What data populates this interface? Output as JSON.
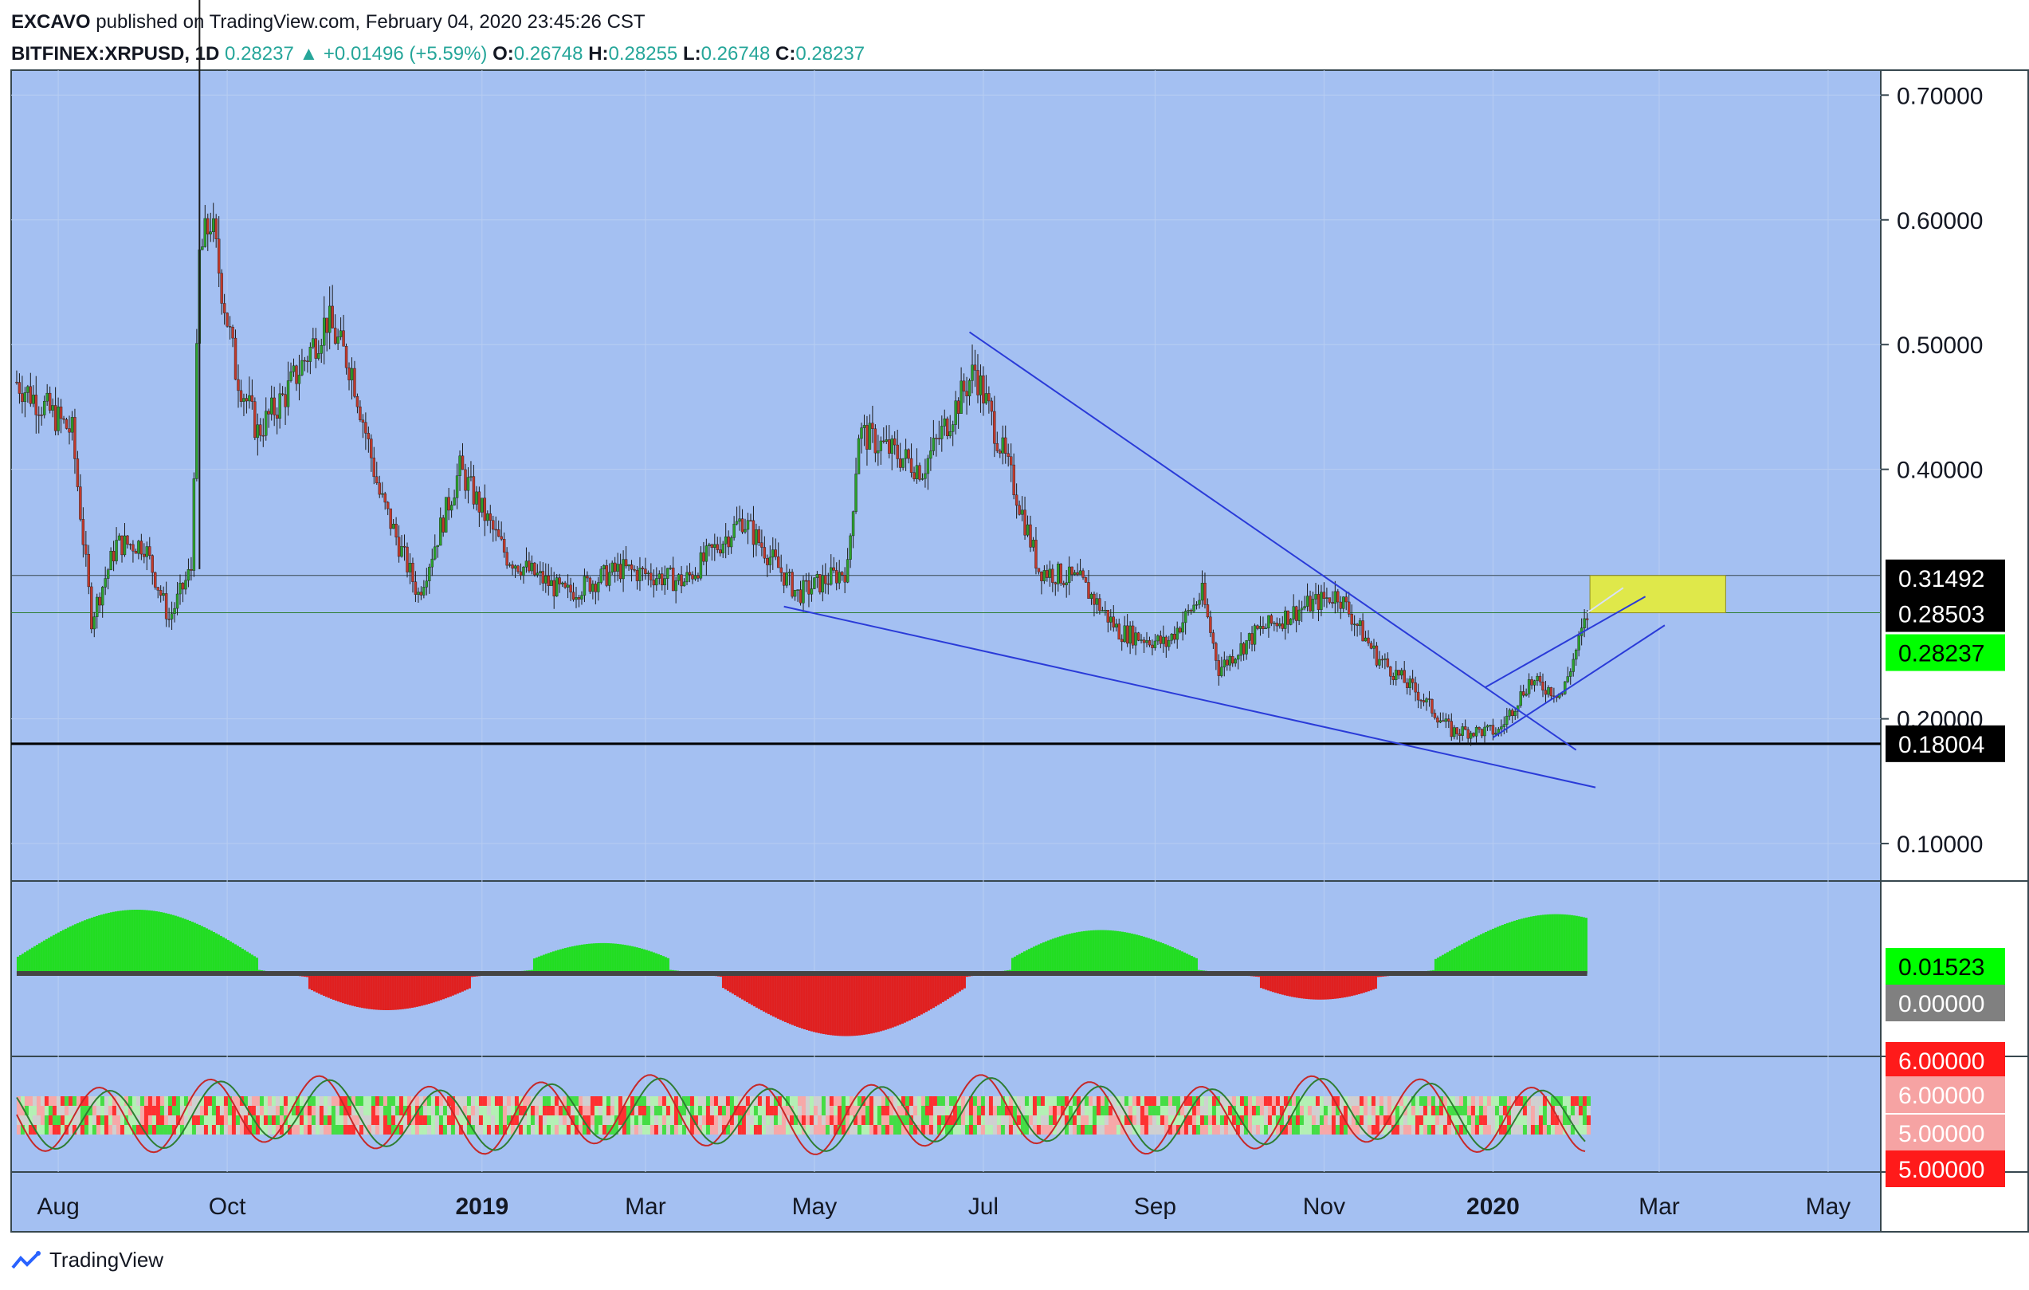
{
  "header": {
    "publisher": "EXCAVO",
    "published_text": "published on TradingView.com, February 04, 2020 23:45:26 CST",
    "symbol": "BITFINEX:XRPUSD, 1D",
    "last": "0.28237",
    "change": "▲ +0.01496 (+5.59%)",
    "o_label": "O:",
    "o_val": "0.26748",
    "h_label": "H:",
    "h_val": "0.28255",
    "l_label": "L:",
    "l_val": "0.26748",
    "c_label": "C:",
    "c_val": "0.28237"
  },
  "footer": {
    "brand": "TradingView"
  },
  "colors": {
    "background": "#a4c0f2",
    "up_candle": "#2ca02c",
    "down_candle": "#c0392b",
    "trendline": "#2a3bd8",
    "zone": "#dfe84a",
    "label_green": "#00ff00"
  },
  "chart_data": [
    {
      "type": "candlestick",
      "x_ticks": [
        "Aug",
        "Oct",
        "2019",
        "Mar",
        "May",
        "Jul",
        "Sep",
        "Nov",
        "2020",
        "Mar",
        "May"
      ],
      "y_ticks": [
        "0.70000",
        "0.60000",
        "0.50000",
        "0.40000",
        "0.20000",
        "0.10000"
      ],
      "ylim": [
        0.07,
        0.72
      ],
      "price_labels": [
        {
          "text": "0.31492",
          "value": 0.31492,
          "style": "dark"
        },
        {
          "text": "0.28503",
          "value": 0.28503,
          "style": "dark"
        },
        {
          "text": "0.28237",
          "value": 0.28237,
          "style": "green"
        },
        {
          "text": "0.18004",
          "value": 0.18004,
          "style": "dark"
        }
      ],
      "horizontal_lines": [
        {
          "value": 0.31492,
          "color": "#37474f",
          "width": 1
        },
        {
          "value": 0.28503,
          "color": "#2e7d32",
          "width": 1
        },
        {
          "value": 0.18004,
          "color": "#000000",
          "width": 3
        }
      ],
      "series": [
        {
          "date": "2018-07-17",
          "close": 0.47
        },
        {
          "date": "2018-07-27",
          "close": 0.45
        },
        {
          "date": "2018-08-06",
          "close": 0.43
        },
        {
          "date": "2018-08-13",
          "close": 0.28
        },
        {
          "date": "2018-08-22",
          "close": 0.34
        },
        {
          "date": "2018-09-01",
          "close": 0.34
        },
        {
          "date": "2018-09-10",
          "close": 0.28
        },
        {
          "date": "2018-09-18",
          "close": 0.32
        },
        {
          "date": "2018-09-21",
          "close": 0.57
        },
        {
          "date": "2018-09-25",
          "close": 0.6
        },
        {
          "date": "2018-10-04",
          "close": 0.48
        },
        {
          "date": "2018-10-12",
          "close": 0.43
        },
        {
          "date": "2018-10-22",
          "close": 0.46
        },
        {
          "date": "2018-11-06",
          "close": 0.52
        },
        {
          "date": "2018-11-15",
          "close": 0.48
        },
        {
          "date": "2018-11-25",
          "close": 0.38
        },
        {
          "date": "2018-12-09",
          "close": 0.3
        },
        {
          "date": "2018-12-24",
          "close": 0.4
        },
        {
          "date": "2019-01-10",
          "close": 0.33
        },
        {
          "date": "2019-01-31",
          "close": 0.3
        },
        {
          "date": "2019-02-20",
          "close": 0.32
        },
        {
          "date": "2019-03-15",
          "close": 0.31
        },
        {
          "date": "2019-04-05",
          "close": 0.36
        },
        {
          "date": "2019-04-25",
          "close": 0.3
        },
        {
          "date": "2019-05-13",
          "close": 0.32
        },
        {
          "date": "2019-05-17",
          "close": 0.43
        },
        {
          "date": "2019-06-09",
          "close": 0.4
        },
        {
          "date": "2019-06-28",
          "close": 0.48
        },
        {
          "date": "2019-07-13",
          "close": 0.38
        },
        {
          "date": "2019-07-21",
          "close": 0.32
        },
        {
          "date": "2019-08-05",
          "close": 0.31
        },
        {
          "date": "2019-08-19",
          "close": 0.27
        },
        {
          "date": "2019-09-05",
          "close": 0.26
        },
        {
          "date": "2019-09-18",
          "close": 0.3
        },
        {
          "date": "2019-09-24",
          "close": 0.24
        },
        {
          "date": "2019-10-08",
          "close": 0.27
        },
        {
          "date": "2019-10-25",
          "close": 0.29
        },
        {
          "date": "2019-11-06",
          "close": 0.3
        },
        {
          "date": "2019-11-20",
          "close": 0.25
        },
        {
          "date": "2019-12-05",
          "close": 0.22
        },
        {
          "date": "2019-12-17",
          "close": 0.19
        },
        {
          "date": "2020-01-03",
          "close": 0.19
        },
        {
          "date": "2020-01-14",
          "close": 0.23
        },
        {
          "date": "2020-01-26",
          "close": 0.22
        },
        {
          "date": "2020-02-04",
          "close": 0.28237
        }
      ],
      "trendlines": [
        {
          "from": [
            "2019-06-26",
            0.51
          ],
          "to": [
            "2020-01-31",
            0.175
          ]
        },
        {
          "from": [
            "2019-04-20",
            0.29
          ],
          "to": [
            "2020-02-07",
            0.145
          ]
        },
        {
          "from": [
            "2019-12-29",
            0.225
          ],
          "to": [
            "2020-02-25",
            0.298
          ]
        },
        {
          "from": [
            "2020-01-01",
            0.185
          ],
          "to": [
            "2020-03-03",
            0.275
          ]
        }
      ],
      "zone": {
        "from": "2020-02-05",
        "to": "2020-03-25",
        "low": 0.28503,
        "high": 0.31492
      }
    },
    {
      "type": "histogram",
      "labels": [
        {
          "text": "0.01523",
          "style": "green"
        },
        {
          "text": "0.00000",
          "style": "gray"
        }
      ]
    },
    {
      "type": "oscillator",
      "labels": [
        {
          "text": "6.00000",
          "style": "red-top"
        },
        {
          "text": "6.00000",
          "style": "pink"
        },
        {
          "text": "5.00000",
          "style": "pink"
        },
        {
          "text": "5.00000",
          "style": "red-bottom"
        }
      ]
    }
  ]
}
